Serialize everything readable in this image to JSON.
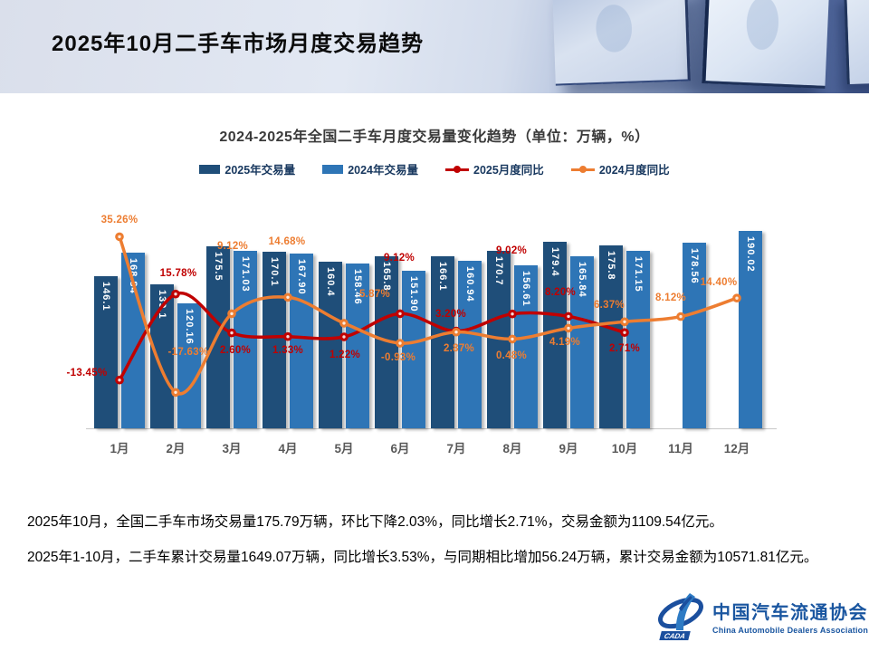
{
  "header": {
    "title": "2025年10月二手车市场月度交易趋势"
  },
  "chart": {
    "title": "2024-2025年全国二手车月度交易量变化趋势（单位：万辆，%）",
    "legend": [
      {
        "label": "2025年交易量",
        "type": "bar",
        "color": "#1F4E79"
      },
      {
        "label": "2024年交易量",
        "type": "bar",
        "color": "#2E75B6"
      },
      {
        "label": "2025月度同比",
        "type": "line",
        "color": "#C00000"
      },
      {
        "label": "2024月度同比",
        "type": "line",
        "color": "#ED7D31"
      }
    ]
  },
  "chart_data": {
    "type": "bar",
    "subtype": "combo-bar-line",
    "title": "2024-2025年全国二手车月度交易量变化趋势（单位：万辆，%）",
    "xlabel": "",
    "ylabel": "",
    "unit": "万辆，%",
    "grid": false,
    "axes_hidden": true,
    "legend_position": "top",
    "bar_axis_range": [
      0,
      200
    ],
    "pct_axis_range": [
      -40,
      40
    ],
    "categories": [
      "1月",
      "2月",
      "3月",
      "4月",
      "5月",
      "6月",
      "7月",
      "8月",
      "9月",
      "10月",
      "11月",
      "12月"
    ],
    "series": [
      {
        "name": "2025年交易量",
        "kind": "bar",
        "color": "#1F4E79",
        "values": [
          146.1,
          139.1,
          175.5,
          170.1,
          160.4,
          165.8,
          166.1,
          170.7,
          179.4,
          175.8,
          null,
          null
        ],
        "labels": [
          "146.1",
          "139.1",
          "175.5",
          "170.1",
          "160.4",
          "165.8",
          "166.1",
          "170.7",
          "179.4",
          "175.8",
          null,
          null
        ]
      },
      {
        "name": "2024年交易量",
        "kind": "bar",
        "color": "#2E75B6",
        "values": [
          168.84,
          120.16,
          171.03,
          167.9,
          158.46,
          151.9,
          160.94,
          156.61,
          165.84,
          171.15,
          178.56,
          190.02
        ],
        "labels": [
          "168.84",
          "120.16",
          "171.03",
          "167.90",
          "158.46",
          "151.90",
          "160.94",
          "156.61",
          "165.84",
          "171.15",
          "178.56",
          "190.02"
        ]
      },
      {
        "name": "2025月度同比",
        "kind": "line",
        "color": "#C00000",
        "values": [
          -13.45,
          15.78,
          2.6,
          1.33,
          1.22,
          9.12,
          3.2,
          9.02,
          8.2,
          2.71,
          null,
          null
        ],
        "labels": [
          "-13.45%",
          "15.78%",
          "2.60%",
          "1.33%",
          "1.22%",
          "9.12%",
          "3.20%",
          "9.02%",
          "8.20%",
          "2.71%",
          null,
          null
        ]
      },
      {
        "name": "2024月度同比",
        "kind": "line",
        "color": "#ED7D31",
        "values": [
          35.26,
          -17.63,
          9.12,
          14.68,
          5.87,
          -0.93,
          2.87,
          0.48,
          4.19,
          6.37,
          8.12,
          14.4
        ],
        "labels": [
          "35.26%",
          "-17.63%",
          "9.12%",
          "14.68%",
          "5.87%",
          "-0.93%",
          "2.87%",
          "0.48%",
          "4.19%",
          "6.37%",
          "8.12%",
          "14.40%"
        ]
      }
    ]
  },
  "summary": {
    "line1": "2025年10月，全国二手车市场交易量175.79万辆，环比下降2.03%，同比增长2.71%，交易金额为1109.54亿元。",
    "line2": "2025年1-10月，二手车累计交易量1649.07万辆，同比增长3.53%，与同期相比增加56.24万辆，累计交易金额为10571.81亿元。"
  },
  "logo": {
    "cn": "中国汽车流通协会",
    "en": "China Automobile Dealers Association",
    "badge": "CADA",
    "color": "#1a56a0"
  }
}
